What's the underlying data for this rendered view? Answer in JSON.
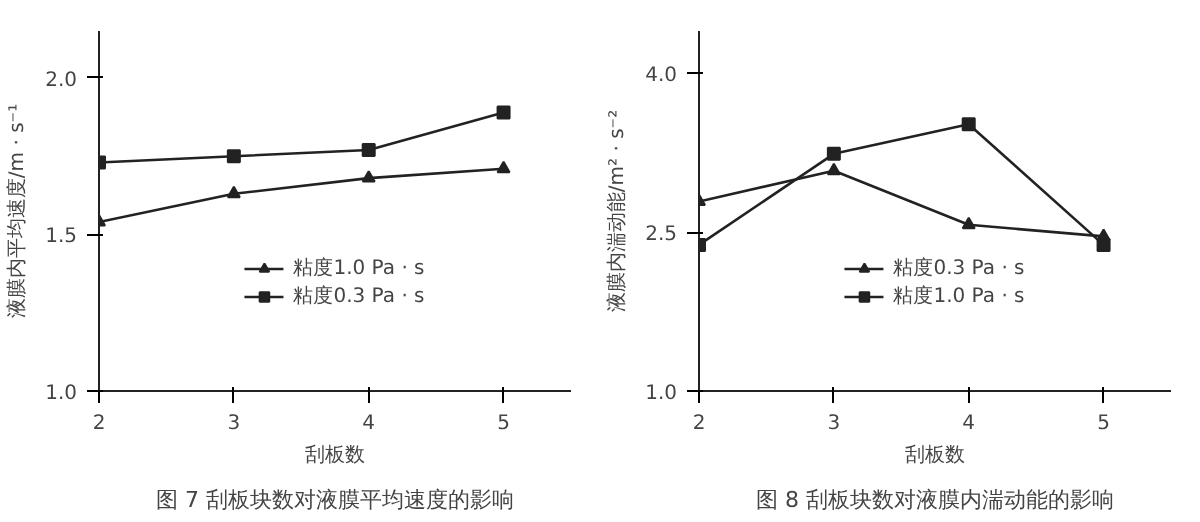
{
  "chart_data": [
    {
      "type": "line",
      "title": "图 7 刮板块数对液膜平均速度的影响",
      "xlabel": "刮板数",
      "ylabel": "液膜内平均速度/m · s⁻¹",
      "x": [
        2,
        3,
        4,
        5
      ],
      "xlim": [
        2,
        5.5
      ],
      "xticks": [
        2,
        3,
        4,
        5
      ],
      "ylim": [
        1.0,
        2.15
      ],
      "yticks": [
        {
          "value": 1.0,
          "label": "1.0"
        },
        {
          "value": 1.5,
          "label": "1.5"
        },
        {
          "value": 2.0,
          "label": "2.0"
        }
      ],
      "grid": false,
      "legend": "bottom",
      "line_style": "solid",
      "series": [
        {
          "name": "粘度1.0 Pa · s",
          "color": "#222222",
          "marker": "triangle",
          "values": [
            1.54,
            1.63,
            1.68,
            1.71
          ]
        },
        {
          "name": "粘度0.3 Pa · s",
          "color": "#222222",
          "marker": "square",
          "values": [
            1.73,
            1.75,
            1.77,
            1.89
          ]
        }
      ]
    },
    {
      "type": "line",
      "title": "图 8 刮板块数对液膜内湍动能的影响",
      "xlabel": "刮板数",
      "ylabel": "液膜内湍动能/m² · s⁻²",
      "x": [
        2,
        3,
        4,
        5
      ],
      "xlim": [
        2,
        5.5
      ],
      "xticks": [
        2,
        3,
        4,
        5
      ],
      "ylim": [
        1.0,
        4.4
      ],
      "yticks": [
        {
          "value": 1.0,
          "label": "1.0"
        },
        {
          "value": 2.5,
          "label": "2.5"
        },
        {
          "value": 4.0,
          "label": "4.0"
        }
      ],
      "grid": false,
      "legend": "bottom",
      "line_style": "solid",
      "series": [
        {
          "name": "粘度0.3 Pa · s",
          "color": "#222222",
          "marker": "triangle",
          "values": [
            2.79,
            3.08,
            2.57,
            2.46
          ]
        },
        {
          "name": "粘度1.0 Pa · s",
          "color": "#222222",
          "marker": "square",
          "values": [
            2.38,
            3.24,
            3.52,
            2.38
          ]
        }
      ]
    }
  ]
}
